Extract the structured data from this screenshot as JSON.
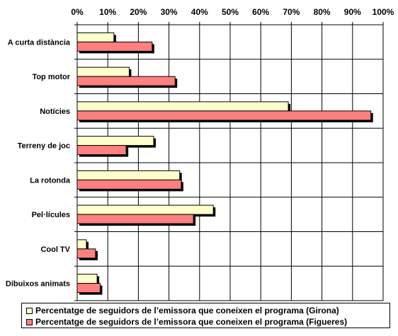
{
  "chart_data": {
    "type": "bar",
    "orientation": "horizontal",
    "categories": [
      "A curta distància",
      "Top motor",
      "Notícies",
      "Terreny de joc",
      "La rotonda",
      "Pel·lícules",
      "Cool TV",
      "Dibuixos animats"
    ],
    "series": [
      {
        "name": "Percentatge de seguidors de l’emissora que coneixen el programa (Girona)",
        "color": "#ffffcc",
        "values": [
          12,
          17,
          69,
          25,
          33.5,
          44.5,
          3,
          6.5
        ]
      },
      {
        "name": "Percentatge de seguidors de l’emissora que coneixen el programa (Figueres)",
        "color": "#ff8080",
        "values": [
          24.5,
          32,
          96,
          16,
          34,
          38,
          6,
          7.5
        ]
      }
    ],
    "xlim": [
      0,
      100
    ],
    "xticks": [
      "0%",
      "10%",
      "20%",
      "30%",
      "40%",
      "50%",
      "60%",
      "70%",
      "80%",
      "90%",
      "100%"
    ],
    "xaxis_position": "top",
    "grid": "vertical",
    "legend_position": "bottom"
  }
}
